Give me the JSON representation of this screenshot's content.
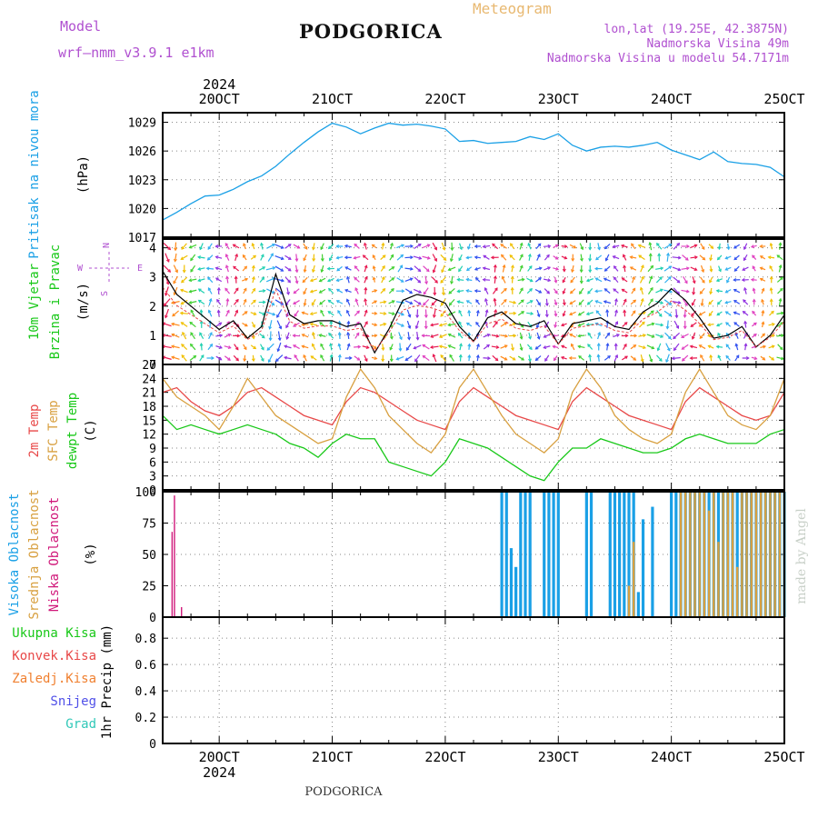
{
  "header": {
    "model_label": "Model",
    "model_name": "wrf–nmm_v3.9.1  e1km",
    "title": "PODGORICA",
    "meteogram_label": "Meteogram",
    "lonlat": "lon,lat (19.25E, 42.3875N)",
    "elevation": "Nadmorska Visina 49m",
    "model_elevation": "Nadmorska Visina u modelu 54.7171m",
    "footer_title": "PODGORICA",
    "credit": "made by Angel"
  },
  "colors": {
    "pressure": "#1aa0e6",
    "temp2m": "#e84848",
    "sfc": "#d8a040",
    "dew": "#18c818",
    "high_cloud": "#1aa0e6",
    "mid_cloud": "#d8a040",
    "low_cloud": "#d0187a",
    "purple": "#b050d0",
    "orange_hdr": "#e8b870"
  },
  "time_axis": {
    "year_label": "2024",
    "ticks": [
      "20OCT",
      "21OCT",
      "22OCT",
      "23OCT",
      "24OCT",
      "25OCT"
    ],
    "hours_start_before_first_tick": 12,
    "total_hours": 132
  },
  "chart_data": [
    {
      "type": "line",
      "panel": "pressure",
      "ylabel_main": "Pritisak na nivou mora",
      "ylabel_unit": "(hPa)",
      "yticks": [
        "1017",
        "1020",
        "1023",
        "1026",
        "1029"
      ],
      "ylim": [
        1017,
        1030
      ],
      "x_hours": [
        0,
        3,
        6,
        9,
        12,
        15,
        18,
        21,
        24,
        27,
        30,
        33,
        36,
        39,
        42,
        45,
        48,
        51,
        54,
        57,
        60,
        63,
        66,
        69,
        72,
        75,
        78,
        81,
        84,
        87,
        90,
        93,
        96,
        99,
        102,
        105,
        108,
        111,
        114,
        117,
        120,
        123,
        126,
        129,
        132
      ],
      "series": [
        {
          "values": [
            1018.8,
            1019.6,
            1020.5,
            1021.3,
            1021.4,
            1022.0,
            1022.8,
            1023.4,
            1024.4,
            1025.7,
            1026.9,
            1028.0,
            1028.9,
            1028.5,
            1027.8,
            1028.4,
            1028.9,
            1028.7,
            1028.8,
            1028.6,
            1028.3,
            1027.0,
            1027.1,
            1026.8,
            1026.9,
            1027.0,
            1027.5,
            1027.2,
            1027.8,
            1026.6,
            1026.0,
            1026.4,
            1026.5,
            1026.4,
            1026.6,
            1026.9,
            1026.1,
            1025.6,
            1025.1,
            1025.9,
            1024.9,
            1024.7,
            1024.6,
            1024.3,
            1023.3
          ]
        }
      ]
    },
    {
      "type": "line",
      "panel": "wind",
      "ylabel_main": "10m Vjetar",
      "ylabel_sub": "Brzina i Pravac",
      "ylabel_unit": "(m/s)",
      "compass": {
        "n": "N",
        "s": "S",
        "e": "E",
        "w": "W"
      },
      "yticks": [
        "0",
        "1",
        "2",
        "3",
        "4"
      ],
      "ylim": [
        0,
        4.3
      ],
      "x_hours": [
        0,
        3,
        6,
        9,
        12,
        15,
        18,
        21,
        24,
        27,
        30,
        33,
        36,
        39,
        42,
        45,
        48,
        51,
        54,
        57,
        60,
        63,
        66,
        69,
        72,
        75,
        78,
        81,
        84,
        87,
        90,
        93,
        96,
        99,
        102,
        105,
        108,
        111,
        114,
        117,
        120,
        123,
        126,
        129,
        132
      ],
      "series": [
        {
          "name": "speed",
          "values": [
            3.2,
            2.4,
            2.0,
            1.6,
            1.2,
            1.5,
            0.9,
            1.3,
            3.1,
            1.7,
            1.4,
            1.5,
            1.5,
            1.3,
            1.4,
            0.4,
            1.2,
            2.2,
            2.4,
            2.3,
            2.1,
            1.3,
            0.8,
            1.6,
            1.8,
            1.4,
            1.3,
            1.5,
            0.7,
            1.4,
            1.5,
            1.6,
            1.3,
            1.2,
            1.8,
            2.1,
            2.6,
            2.2,
            1.6,
            0.9,
            1.0,
            1.3,
            0.6,
            1.0,
            1.7
          ]
        }
      ]
    },
    {
      "type": "line",
      "panel": "temperature",
      "ylabel_main": "2m Temp",
      "ylabel_sfc": "SFC Temp",
      "ylabel_dew": "dewpt Temp",
      "ylabel_unit": "(C)",
      "yticks": [
        "0",
        "3",
        "6",
        "9",
        "12",
        "15",
        "18",
        "21",
        "24",
        "27"
      ],
      "ylim": [
        0,
        27
      ],
      "x_hours": [
        0,
        3,
        6,
        9,
        12,
        15,
        18,
        21,
        24,
        27,
        30,
        33,
        36,
        39,
        42,
        45,
        48,
        51,
        54,
        57,
        60,
        63,
        66,
        69,
        72,
        75,
        78,
        81,
        84,
        87,
        90,
        93,
        96,
        99,
        102,
        105,
        108,
        111,
        114,
        117,
        120,
        123,
        126,
        129,
        132
      ],
      "series": [
        {
          "name": "2m",
          "values": [
            21,
            22,
            19,
            17,
            16,
            18,
            21,
            22,
            20,
            18,
            16,
            15,
            14,
            19,
            22,
            21,
            19,
            17,
            15,
            14,
            13,
            19,
            22,
            20,
            18,
            16,
            15,
            14,
            13,
            19,
            22,
            20,
            18,
            16,
            15,
            14,
            13,
            19,
            22,
            20,
            18,
            16,
            15,
            16,
            21
          ]
        },
        {
          "name": "sfc",
          "values": [
            24,
            20,
            18,
            16,
            13,
            18,
            24,
            20,
            16,
            14,
            12,
            10,
            11,
            20,
            26,
            22,
            16,
            13,
            10,
            8,
            12,
            22,
            26,
            21,
            16,
            12,
            10,
            8,
            11,
            21,
            26,
            22,
            16,
            13,
            11,
            10,
            12,
            21,
            26,
            21,
            16,
            14,
            13,
            16,
            24
          ]
        },
        {
          "name": "dew",
          "values": [
            16,
            13,
            14,
            13,
            12,
            13,
            14,
            13,
            12,
            10,
            9,
            7,
            10,
            12,
            11,
            11,
            6,
            5,
            4,
            3,
            6,
            11,
            10,
            9,
            7,
            5,
            3,
            2,
            6,
            9,
            9,
            11,
            10,
            9,
            8,
            8,
            9,
            11,
            12,
            11,
            10,
            10,
            10,
            12,
            13
          ]
        }
      ]
    },
    {
      "type": "bar",
      "panel": "clouds",
      "ylabel_high": "Visoka Oblacnost",
      "ylabel_mid": "Srednja Oblacnost",
      "ylabel_low": "Niska Oblacnost",
      "ylabel_unit": "(%)",
      "yticks": [
        "0",
        "25",
        "50",
        "75",
        "100"
      ],
      "ylim": [
        0,
        100
      ],
      "series": [
        {
          "name": "high",
          "x_hours": [
            72,
            73,
            74,
            75,
            76,
            77,
            78,
            81,
            82,
            83,
            84,
            90,
            91,
            95,
            96,
            97,
            98,
            99,
            100,
            101,
            102,
            104,
            108,
            109,
            110,
            111,
            112,
            113,
            114,
            115,
            116,
            117,
            118,
            119,
            120,
            121,
            122,
            123,
            124,
            125,
            126,
            127,
            128,
            129,
            130,
            131,
            132
          ],
          "values": [
            100,
            100,
            55,
            40,
            100,
            100,
            100,
            100,
            100,
            100,
            100,
            100,
            100,
            100,
            100,
            100,
            100,
            100,
            100,
            20,
            78,
            88,
            100,
            100,
            100,
            100,
            100,
            100,
            100,
            100,
            100,
            100,
            100,
            100,
            100,
            100,
            100,
            100,
            100,
            100,
            100,
            100,
            100,
            100,
            100,
            100,
            100
          ]
        },
        {
          "name": "mid",
          "x_hours": [
            99,
            100,
            110,
            111,
            112,
            113,
            114,
            115,
            116,
            117,
            118,
            119,
            120,
            121,
            122,
            123,
            124,
            125,
            126,
            127,
            128,
            129,
            130,
            131,
            132
          ],
          "values": [
            25,
            60,
            100,
            100,
            100,
            100,
            100,
            100,
            85,
            100,
            60,
            100,
            100,
            100,
            40,
            100,
            100,
            100,
            100,
            100,
            100,
            100,
            100,
            100,
            100
          ]
        },
        {
          "name": "low",
          "x_hours": [
            2,
            2.5,
            4
          ],
          "values": [
            68,
            97,
            8
          ]
        }
      ]
    },
    {
      "type": "bar",
      "panel": "precipitation",
      "ylabel_unit": "1hr Precip (mm)",
      "legend": [
        "Ukupna Kisa",
        "Konvek.Kisa",
        "Zaledj.Kisa",
        "Snijeg",
        "Grad"
      ],
      "yticks": [
        "0",
        "0.2",
        "0.4",
        "0.6",
        "0.8"
      ],
      "ylim": [
        0,
        0.96
      ],
      "series": [
        {
          "name": "Ukupna Kisa",
          "values": []
        },
        {
          "name": "Konvek.Kisa",
          "values": []
        },
        {
          "name": "Zaledj.Kisa",
          "values": []
        },
        {
          "name": "Snijeg",
          "values": []
        },
        {
          "name": "Grad",
          "values": []
        }
      ]
    }
  ]
}
